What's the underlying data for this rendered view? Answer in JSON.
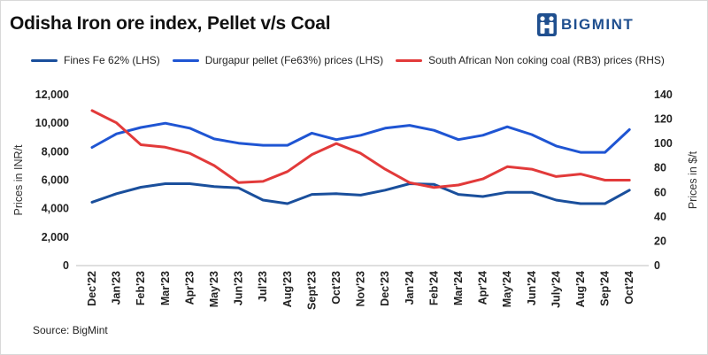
{
  "header": {
    "title": "Odisha Iron ore index, Pellet v/s Coal",
    "logo_text": "BIGMINT"
  },
  "footer": {
    "source": "Source: BigMint"
  },
  "chart_data": {
    "type": "line",
    "title": "Odisha Iron ore index, Pellet v/s Coal",
    "categories": [
      "Dec'22",
      "Jan'23",
      "Feb'23",
      "Mar'23",
      "Apr'23",
      "May'23",
      "Jun'23",
      "Jul'23",
      "Aug'23",
      "Sept'23",
      "Oct'23",
      "Nov'23",
      "Dec'23",
      "Jan'24",
      "Feb'24",
      "Mar'24",
      "Apr'24",
      "May'24",
      "Jun'24",
      "July'24",
      "Aug'24",
      "Sep'24",
      "Oct'24"
    ],
    "y_left": {
      "label": "Prices in INR/t",
      "range": [
        0,
        12000
      ],
      "ticks": [
        "0",
        "2,000",
        "4,000",
        "6,000",
        "8,000",
        "10,000",
        "12,000"
      ],
      "tick_values": [
        0,
        2000,
        4000,
        6000,
        8000,
        10000,
        12000
      ]
    },
    "y_right": {
      "label": "Prices in $/t",
      "range": [
        0,
        140
      ],
      "ticks": [
        "0",
        "20",
        "40",
        "60",
        "80",
        "100",
        "120",
        "140"
      ],
      "tick_values": [
        0,
        20,
        40,
        60,
        80,
        100,
        120,
        140
      ]
    },
    "legend_position": "top",
    "series": [
      {
        "name": "Fines Fe 62% (LHS)",
        "axis": "left",
        "color": "#1a4f9c",
        "values": [
          4450,
          5050,
          5500,
          5750,
          5750,
          5550,
          5450,
          4600,
          4350,
          5000,
          5050,
          4950,
          5300,
          5750,
          5700,
          5000,
          4850,
          5150,
          5150,
          4600,
          4350,
          4350,
          5300
        ]
      },
      {
        "name": "Durgapur pellet (Fe63%) prices (LHS)",
        "axis": "left",
        "color": "#1f55d3",
        "values": [
          8300,
          9250,
          9700,
          10000,
          9650,
          8900,
          8600,
          8450,
          8450,
          9300,
          8850,
          9150,
          9650,
          9850,
          9500,
          8850,
          9150,
          9750,
          9200,
          8400,
          7950,
          7950,
          9550
        ]
      },
      {
        "name": "South African Non coking coal (RB3) prices (RHS)",
        "axis": "right",
        "color": "#e23a3a",
        "values": [
          127,
          117,
          99,
          97,
          92,
          82,
          68,
          69,
          77,
          91,
          100,
          92,
          79,
          68,
          64,
          66,
          71,
          81,
          79,
          73,
          75,
          70,
          70
        ]
      }
    ]
  }
}
